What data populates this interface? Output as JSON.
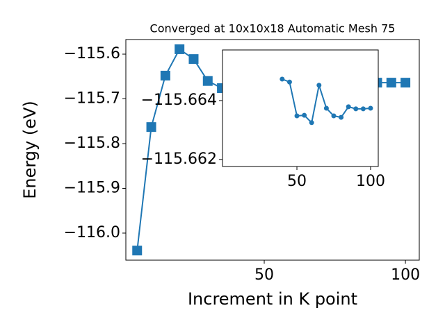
{
  "chart_data": [
    {
      "type": "line",
      "title": "Converged at 10x10x18 Automatic Mesh 75",
      "xlabel": "Increment in K point",
      "ylabel": "Energy (eV)",
      "x": [
        5,
        10,
        15,
        20,
        25,
        30,
        35,
        40,
        45,
        50,
        55,
        60,
        65,
        70,
        75,
        80,
        85,
        90,
        95,
        100
      ],
      "series": [
        {
          "name": "Energy",
          "color": "#1f77b4",
          "marker": "square",
          "values": [
            -116.039,
            -115.763,
            -115.648,
            -115.589,
            -115.611,
            -115.66,
            -115.676,
            -115.66473,
            -115.66463,
            -115.66348,
            -115.6635,
            -115.66325,
            -115.66452,
            -115.66374,
            -115.66348,
            -115.66343,
            -115.66379,
            -115.66372,
            -115.66372,
            -115.66374
          ]
        }
      ],
      "xlim": [
        1,
        104.9
      ],
      "ylim": [
        -116.0605,
        -115.5674
      ],
      "xticks": [
        50,
        100
      ],
      "yticks": [
        {
          "value": -115.6,
          "label": "−115.6"
        },
        {
          "value": -115.7,
          "label": "−115.7"
        },
        {
          "value": -115.8,
          "label": "−115.8"
        },
        {
          "value": -115.9,
          "label": "−115.9"
        },
        {
          "value": -116.0,
          "label": "−116.0"
        }
      ]
    },
    {
      "type": "line",
      "x": [
        40,
        45,
        50,
        55,
        60,
        65,
        70,
        75,
        80,
        85,
        90,
        95,
        100
      ],
      "series": [
        {
          "name": "Energy",
          "color": "#1f77b4",
          "marker": "circle",
          "values": [
            -115.66473,
            -115.66463,
            -115.66348,
            -115.6635,
            -115.66325,
            -115.66452,
            -115.66374,
            -115.66348,
            -115.66343,
            -115.66379,
            -115.66372,
            -115.66372,
            -115.66374
          ]
        }
      ],
      "xlim": [
        -0.5,
        105.2
      ],
      "ylim": [
        -115.66176,
        -115.66572
      ],
      "xticks": [
        50,
        100
      ],
      "yticks": [
        {
          "value": -115.664,
          "label": "−115.664"
        },
        {
          "value": -115.662,
          "label": "−115.662"
        }
      ]
    }
  ]
}
